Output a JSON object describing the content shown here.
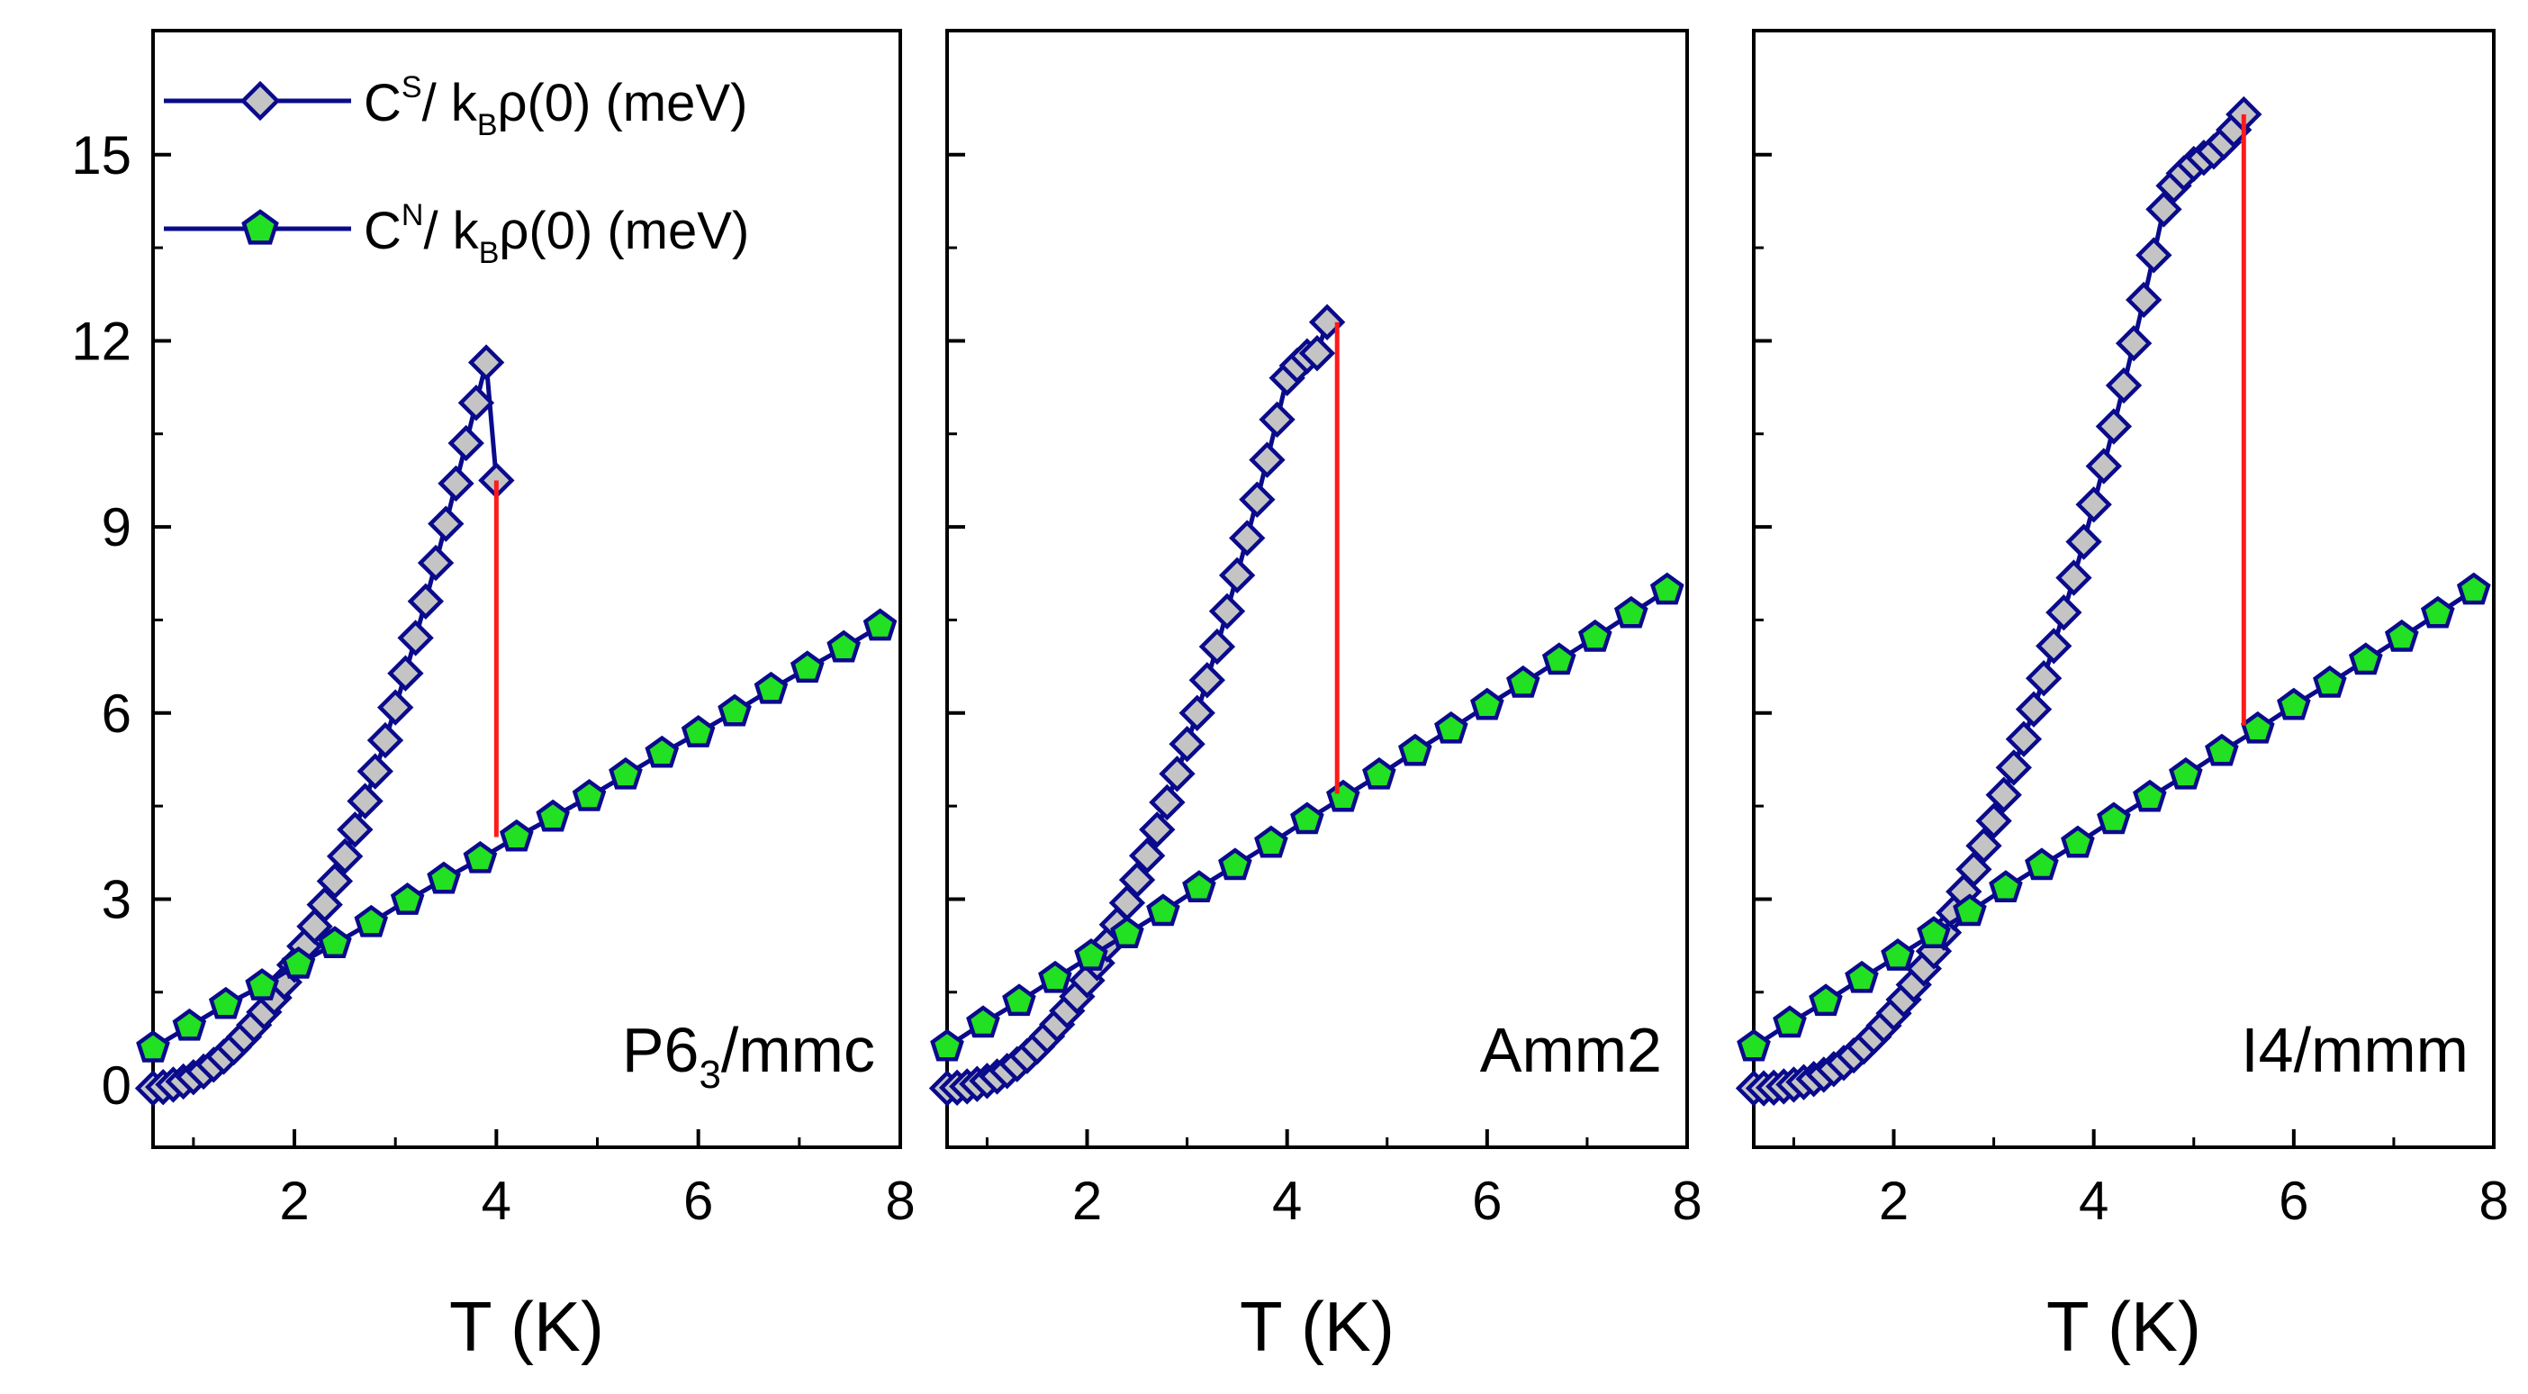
{
  "colors": {
    "series_line": "#0a0a8c",
    "superconducting_fill": "#c4c4c4",
    "normal_fill": "#22e022",
    "jump_line": "#ff1a1a",
    "frame": "#000000"
  },
  "legend": {
    "entries": [
      {
        "series": "superconducting",
        "marker": "diamond",
        "symbol": "C",
        "superscript": "S",
        "over": "/ k",
        "subscript": "B",
        "rest": "ρ(0) (meV)"
      },
      {
        "series": "normal",
        "marker": "pentagon",
        "symbol": "C",
        "superscript": "N",
        "over": "/ k",
        "subscript": "B",
        "rest": "ρ(0) (meV)"
      }
    ]
  },
  "chart_data": [
    {
      "type": "line",
      "panel_label": "P6",
      "panel_label_sub": "3",
      "panel_label_rest": "/mmc",
      "xlabel": "T (K)",
      "ylabel": "",
      "xlim": [
        0.6,
        8.0
      ],
      "ylim": [
        -1.0,
        17.0
      ],
      "x_ticks": [
        2,
        4,
        6,
        8
      ],
      "y_ticks": [
        0,
        3,
        6,
        9,
        12,
        15
      ],
      "x": [
        0.6,
        0.7,
        0.8,
        0.9,
        1.0,
        1.1,
        1.2,
        1.3,
        1.4,
        1.5,
        1.6,
        1.7,
        1.8,
        1.9,
        2.0,
        2.1,
        2.2,
        2.3,
        2.4,
        2.5,
        2.6,
        2.7,
        2.8,
        2.9,
        3.0,
        3.1,
        3.2,
        3.3,
        3.4,
        3.5,
        3.6,
        3.7,
        3.8,
        3.9,
        4.0
      ],
      "series": [
        {
          "name": "C^S/k_Bρ(0) (meV)",
          "marker": "diamond",
          "values": [
            -0.05,
            -0.03,
            0.01,
            0.06,
            0.13,
            0.22,
            0.33,
            0.46,
            0.61,
            0.78,
            0.97,
            1.18,
            1.41,
            1.66,
            1.94,
            2.24,
            2.56,
            2.91,
            3.29,
            3.69,
            4.12,
            4.58,
            5.06,
            5.56,
            6.09,
            6.64,
            7.21,
            7.8,
            8.42,
            9.05,
            9.7,
            10.35,
            11.0,
            11.65,
            9.75
          ]
        },
        {
          "name": "C^N/k_Bρ(0) (meV)",
          "marker": "pentagon",
          "x": [
            0.6,
            0.96,
            1.32,
            1.68,
            2.04,
            2.4,
            2.76,
            3.12,
            3.48,
            3.84,
            4.2,
            4.56,
            4.92,
            5.28,
            5.64,
            6.0,
            6.36,
            6.72,
            7.08,
            7.44,
            7.8
          ],
          "values": [
            0.6,
            0.95,
            1.3,
            1.6,
            1.95,
            2.28,
            2.62,
            2.98,
            3.32,
            3.65,
            4.0,
            4.32,
            4.65,
            5.0,
            5.35,
            5.68,
            6.02,
            6.38,
            6.72,
            7.05,
            7.4
          ]
        }
      ],
      "jump": {
        "x": 4.0,
        "y_from": 4.0,
        "y_to": 9.75
      }
    },
    {
      "type": "line",
      "panel_label": "Amm2",
      "panel_label_sub": "",
      "panel_label_rest": "",
      "xlabel": "T (K)",
      "ylabel": "",
      "xlim": [
        0.6,
        8.0
      ],
      "ylim": [
        -1.0,
        17.0
      ],
      "x_ticks": [
        2,
        4,
        6,
        8
      ],
      "y_ticks": [
        0,
        3,
        6,
        9,
        12,
        15
      ],
      "series": [
        {
          "name": "C^S/k_Bρ(0) (meV)",
          "marker": "diamond",
          "x": [
            0.6,
            0.7,
            0.8,
            0.9,
            1.0,
            1.1,
            1.2,
            1.3,
            1.4,
            1.5,
            1.6,
            1.7,
            1.8,
            1.9,
            2.0,
            2.1,
            2.2,
            2.3,
            2.4,
            2.5,
            2.6,
            2.7,
            2.8,
            2.9,
            3.0,
            3.1,
            3.2,
            3.3,
            3.4,
            3.5,
            3.6,
            3.7,
            3.8,
            3.9,
            4.0,
            4.1,
            4.2,
            4.3,
            4.4
          ],
          "values": [
            -0.05,
            -0.04,
            -0.02,
            0.02,
            0.07,
            0.14,
            0.23,
            0.34,
            0.47,
            0.62,
            0.79,
            0.98,
            1.2,
            1.43,
            1.69,
            1.97,
            2.27,
            2.59,
            2.94,
            3.31,
            3.7,
            4.12,
            4.56,
            5.02,
            5.5,
            6.0,
            6.53,
            7.07,
            7.64,
            8.22,
            8.82,
            9.44,
            10.08,
            10.73,
            11.4,
            11.6,
            11.75,
            11.8,
            12.3
          ]
        },
        {
          "name": "C^N/k_Bρ(0) (meV)",
          "marker": "pentagon",
          "x": [
            0.6,
            0.96,
            1.32,
            1.68,
            2.04,
            2.4,
            2.76,
            3.12,
            3.48,
            3.84,
            4.2,
            4.56,
            4.92,
            5.28,
            5.64,
            6.0,
            6.36,
            6.72,
            7.08,
            7.44,
            7.8
          ],
          "values": [
            0.62,
            1.0,
            1.35,
            1.72,
            2.08,
            2.44,
            2.8,
            3.18,
            3.54,
            3.9,
            4.28,
            4.64,
            5.0,
            5.38,
            5.74,
            6.12,
            6.48,
            6.85,
            7.22,
            7.6,
            7.98
          ]
        }
      ],
      "jump": {
        "x": 4.5,
        "y_from": 4.7,
        "y_to": 12.3
      }
    },
    {
      "type": "line",
      "panel_label": "I4/mmm",
      "panel_label_sub": "",
      "panel_label_rest": "",
      "xlabel": "T (K)",
      "ylabel": "",
      "xlim": [
        0.6,
        8.0
      ],
      "ylim": [
        -1.0,
        17.0
      ],
      "x_ticks": [
        2,
        4,
        6,
        8
      ],
      "y_ticks": [
        0,
        3,
        6,
        9,
        12,
        15
      ],
      "series": [
        {
          "name": "C^S/k_Bρ(0) (meV)",
          "marker": "diamond",
          "x": [
            0.6,
            0.7,
            0.8,
            0.9,
            1.0,
            1.1,
            1.2,
            1.3,
            1.4,
            1.5,
            1.6,
            1.7,
            1.8,
            1.9,
            2.0,
            2.1,
            2.2,
            2.3,
            2.4,
            2.5,
            2.6,
            2.7,
            2.8,
            2.9,
            3.0,
            3.1,
            3.2,
            3.3,
            3.4,
            3.5,
            3.6,
            3.7,
            3.8,
            3.9,
            4.0,
            4.1,
            4.2,
            4.3,
            4.4,
            4.5,
            4.6,
            4.7,
            4.8,
            4.9,
            5.0,
            5.1,
            5.2,
            5.3,
            5.4,
            5.5
          ],
          "values": [
            -0.05,
            -0.05,
            -0.04,
            -0.02,
            0.01,
            0.05,
            0.1,
            0.17,
            0.26,
            0.36,
            0.48,
            0.62,
            0.78,
            0.96,
            1.16,
            1.38,
            1.62,
            1.88,
            2.16,
            2.46,
            2.78,
            3.12,
            3.48,
            3.86,
            4.26,
            4.68,
            5.12,
            5.58,
            6.06,
            6.56,
            7.08,
            7.62,
            8.18,
            8.76,
            9.36,
            9.98,
            10.62,
            11.28,
            11.96,
            12.66,
            13.38,
            14.12,
            14.5,
            14.7,
            14.85,
            14.95,
            15.05,
            15.2,
            15.4,
            15.65
          ]
        },
        {
          "name": "C^N/k_Bρ(0) (meV)",
          "marker": "pentagon",
          "x": [
            0.6,
            0.96,
            1.32,
            1.68,
            2.04,
            2.4,
            2.76,
            3.12,
            3.48,
            3.84,
            4.2,
            4.56,
            4.92,
            5.28,
            5.64,
            6.0,
            6.36,
            6.72,
            7.08,
            7.44,
            7.8
          ],
          "values": [
            0.62,
            1.0,
            1.35,
            1.72,
            2.08,
            2.44,
            2.8,
            3.18,
            3.54,
            3.9,
            4.28,
            4.64,
            5.0,
            5.38,
            5.74,
            6.12,
            6.48,
            6.85,
            7.22,
            7.6,
            7.98
          ]
        }
      ],
      "jump": {
        "x": 5.5,
        "y_from": 5.8,
        "y_to": 15.65
      }
    }
  ]
}
